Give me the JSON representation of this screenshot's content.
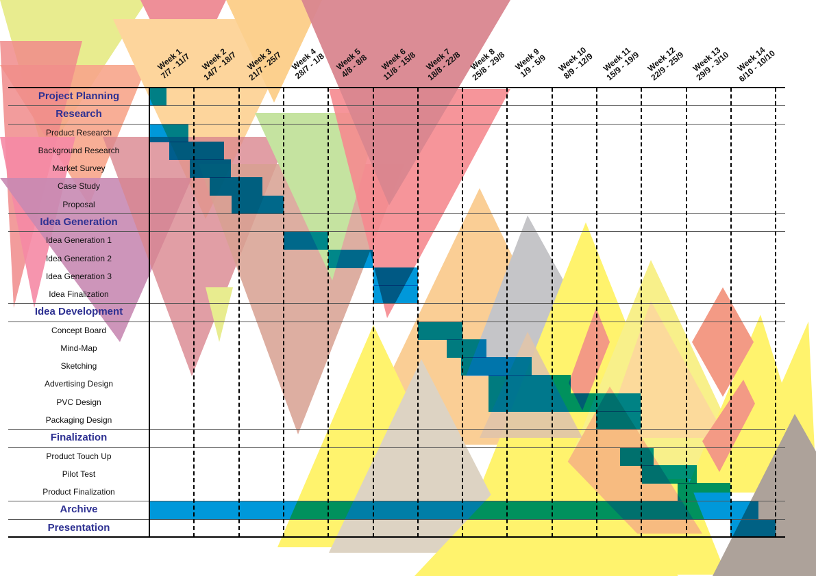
{
  "colors": {
    "bar": "#0098da",
    "section_text": "#2e3192",
    "task_text": "#111111"
  },
  "chart_data": {
    "type": "gantt",
    "x_unit": "weeks",
    "xlim": [
      0,
      14
    ],
    "grid": "vertical dashed",
    "weeks": [
      {
        "label": "Week 1",
        "dates": "7/7 - 11/7"
      },
      {
        "label": "Week 2",
        "dates": "14/7 - 18/7"
      },
      {
        "label": "Week 3",
        "dates": "21/7 - 25/7"
      },
      {
        "label": "Week 4",
        "dates": "28/7 - 1/8"
      },
      {
        "label": "Week 5",
        "dates": "4/8 - 8/8"
      },
      {
        "label": "Week 6",
        "dates": "11/8 - 15/8"
      },
      {
        "label": "Week 7",
        "dates": "18/8 - 22/8"
      },
      {
        "label": "Week 8",
        "dates": "25/8 - 29/8"
      },
      {
        "label": "Week 9",
        "dates": "1/9 - 5/9"
      },
      {
        "label": "Week 10",
        "dates": "8/9 - 12/9"
      },
      {
        "label": "Week 11",
        "dates": "15/9 - 19/9"
      },
      {
        "label": "Week 12",
        "dates": "22/9 - 25/9"
      },
      {
        "label": "Week 13",
        "dates": "29/9 - 3/10"
      },
      {
        "label": "Week 14",
        "dates": "6/10 - 10/10"
      }
    ],
    "rows": [
      {
        "label": "Project Planning",
        "section": true,
        "start": 0,
        "end": 0.38
      },
      {
        "label": "Research",
        "section": true
      },
      {
        "label": "Product Research",
        "section": false,
        "start": 0,
        "end": 0.87
      },
      {
        "label": "Background Research",
        "section": false,
        "start": 0.44,
        "end": 1.67
      },
      {
        "label": "Market Survey",
        "section": false,
        "start": 0.9,
        "end": 1.82
      },
      {
        "label": "Case Study",
        "section": false,
        "start": 1.35,
        "end": 2.53
      },
      {
        "label": "Proposal",
        "section": false,
        "start": 1.84,
        "end": 3.0
      },
      {
        "label": "Idea Generation",
        "section": true
      },
      {
        "label": "Idea Generation 1",
        "section": false,
        "start": 3.0,
        "end": 4.0
      },
      {
        "label": "Idea Generation 2",
        "section": false,
        "start": 4.0,
        "end": 5.0
      },
      {
        "label": "Idea Generation 3",
        "section": false,
        "start": 5.0,
        "end": 6.0
      },
      {
        "label": "Idea Finalization",
        "section": false,
        "start": 5.0,
        "end": 6.0
      },
      {
        "label": "Idea Development",
        "section": true
      },
      {
        "label": "Concept Board",
        "section": false,
        "start": 6.0,
        "end": 7.0
      },
      {
        "label": "Mind-Map",
        "section": false,
        "start": 6.65,
        "end": 7.53
      },
      {
        "label": "Sketching",
        "section": false,
        "start": 6.97,
        "end": 8.54
      },
      {
        "label": "Advertising Design",
        "section": false,
        "start": 7.58,
        "end": 9.42
      },
      {
        "label": "PVC Design",
        "section": false,
        "start": 7.58,
        "end": 10.98
      },
      {
        "label": "Packaging Design",
        "section": false,
        "start": 9.98,
        "end": 10.98
      },
      {
        "label": "Finalization",
        "section": true
      },
      {
        "label": "Product Touch Up",
        "section": false,
        "start": 10.52,
        "end": 11.27
      },
      {
        "label": "Pilot Test",
        "section": false,
        "start": 11.01,
        "end": 12.23
      },
      {
        "label": "Product Finalization",
        "section": false,
        "start": 11.81,
        "end": 12.98
      },
      {
        "label": "Archive",
        "section": true,
        "start": 0,
        "end": 13.61
      },
      {
        "label": "Presentation",
        "section": true,
        "start": 12.98,
        "end": 14.0
      }
    ]
  }
}
